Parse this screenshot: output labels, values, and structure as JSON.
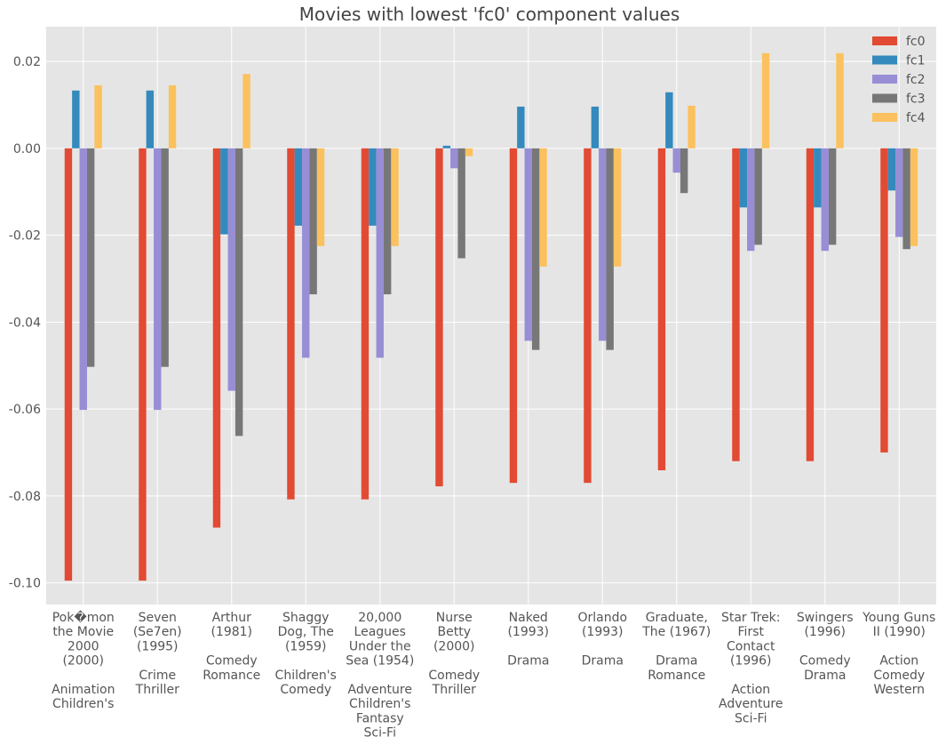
{
  "chart_data": {
    "type": "bar",
    "title": "Movies with lowest 'fc0' component values",
    "xlabel": "",
    "ylabel": "",
    "ylim": [
      -0.105,
      0.028
    ],
    "yticks": [
      0.02,
      0.0,
      -0.02,
      -0.04,
      -0.06,
      -0.08,
      -0.1
    ],
    "ytick_labels": [
      "0.02",
      "0.00",
      "-0.02",
      "-0.04",
      "-0.06",
      "-0.08",
      "-0.10"
    ],
    "grid": true,
    "legend_position": "top-right",
    "categories": [
      "Pok�mon the Movie 2000 (2000) Animation Children's",
      "Seven (Se7en) (1995) Crime Thriller",
      "Arthur (1981) Comedy Romance",
      "Shaggy Dog, The (1959) Children's Comedy",
      "20,000 Leagues Under the Sea (1954) Adventure Children's Fantasy Sci-Fi",
      "Nurse Betty (2000) Comedy Thriller",
      "Naked (1993) Drama",
      "Orlando (1993) Drama",
      "Graduate, The (1967) Drama Romance",
      "Star Trek: First Contact (1996) Action Adventure Sci-Fi",
      "Swingers (1996) Comedy Drama",
      "Young Guns II (1990) Action Comedy Western"
    ],
    "category_lines": [
      [
        "Pok�mon",
        "the Movie",
        "2000",
        "(2000)",
        "",
        "Animation",
        "Children's"
      ],
      [
        "Seven",
        "(Se7en)",
        "(1995)",
        "",
        "Crime",
        "Thriller"
      ],
      [
        "Arthur",
        "(1981)",
        "",
        "Comedy",
        "Romance"
      ],
      [
        "Shaggy",
        "Dog, The",
        "(1959)",
        "",
        "Children's",
        "Comedy"
      ],
      [
        "20,000",
        "Leagues",
        "Under the",
        "Sea (1954)",
        "",
        "Adventure",
        "Children's",
        "Fantasy",
        "Sci-Fi"
      ],
      [
        "Nurse",
        "Betty",
        "(2000)",
        "",
        "Comedy",
        "Thriller"
      ],
      [
        "Naked",
        "(1993)",
        "",
        "Drama"
      ],
      [
        "Orlando",
        "(1993)",
        "",
        "Drama"
      ],
      [
        "Graduate,",
        "The (1967)",
        "",
        "Drama",
        "Romance"
      ],
      [
        "Star Trek:",
        "First",
        "Contact",
        "(1996)",
        "",
        "Action",
        "Adventure",
        "Sci-Fi"
      ],
      [
        "Swingers",
        "(1996)",
        "",
        "Comedy",
        "Drama"
      ],
      [
        "Young Guns",
        "II (1990)",
        "",
        "Action",
        "Comedy",
        "Western"
      ]
    ],
    "series": [
      {
        "name": "fc0",
        "color": "#E24A33",
        "values": [
          -0.0995,
          -0.0995,
          -0.0873,
          -0.0808,
          -0.0808,
          -0.0778,
          -0.077,
          -0.077,
          -0.0741,
          -0.072,
          -0.072,
          -0.07
        ]
      },
      {
        "name": "fc1",
        "color": "#348ABD",
        "values": [
          0.0133,
          0.0133,
          -0.0198,
          -0.0178,
          -0.0178,
          0.0006,
          0.0096,
          0.0096,
          0.0129,
          -0.0136,
          -0.0136,
          -0.0097
        ]
      },
      {
        "name": "fc2",
        "color": "#988ED5",
        "values": [
          -0.0602,
          -0.0602,
          -0.0558,
          -0.0482,
          -0.0482,
          -0.0046,
          -0.0443,
          -0.0443,
          -0.0056,
          -0.0236,
          -0.0236,
          -0.0204
        ]
      },
      {
        "name": "fc3",
        "color": "#777777",
        "values": [
          -0.0503,
          -0.0503,
          -0.0662,
          -0.0336,
          -0.0336,
          -0.0253,
          -0.0464,
          -0.0464,
          -0.0103,
          -0.0222,
          -0.0222,
          -0.0232
        ]
      },
      {
        "name": "fc4",
        "color": "#FBC15E",
        "values": [
          0.0145,
          0.0145,
          0.0171,
          -0.0225,
          -0.0225,
          -0.0018,
          -0.0272,
          -0.0272,
          0.0098,
          0.0219,
          0.0219,
          -0.0225
        ]
      }
    ]
  }
}
